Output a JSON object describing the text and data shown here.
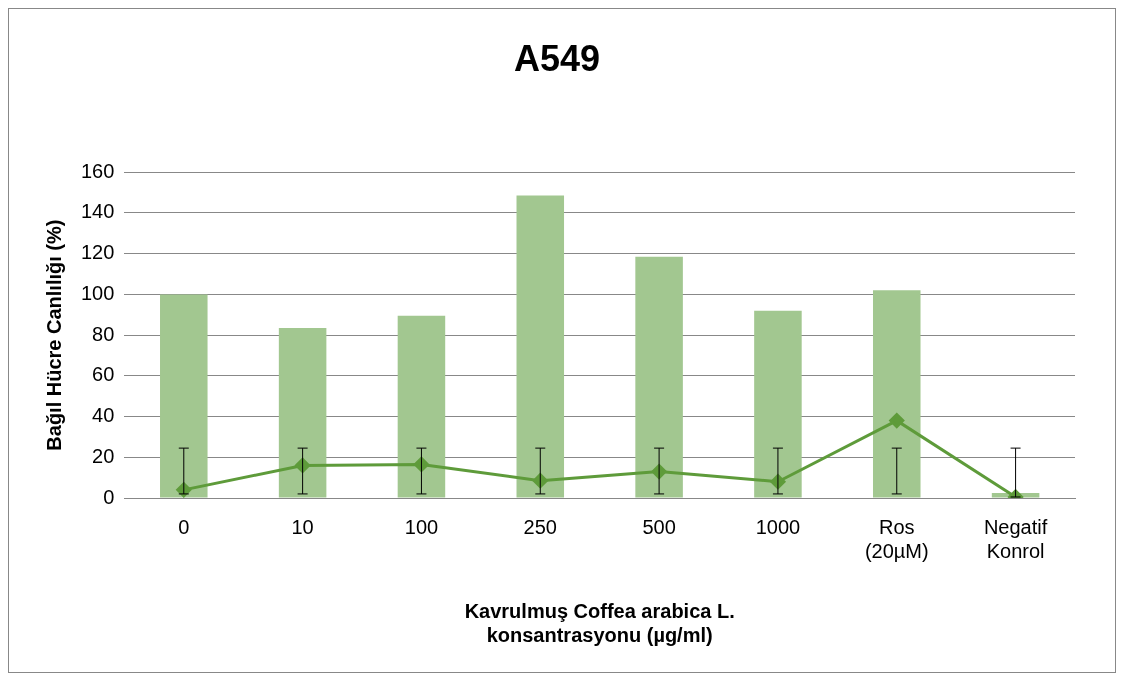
{
  "chart_data": {
    "type": "bar",
    "title": "A549",
    "xlabel": "Kavrulmuş Coffea arabica L.\nkonsantrasyonu (µg/ml)",
    "ylabel": "Bağıl Hücre Canlılığı (%)",
    "categories": [
      "0",
      "10",
      "100",
      "250",
      "500",
      "1000",
      "Ros (20µM)",
      "Negatif Konrol"
    ],
    "series": [
      {
        "color": "#a2c790",
        "values": [
          100,
          83.5,
          89.5,
          148.5,
          118.5,
          92,
          102,
          2.5
        ]
      },
      {
        "type": "line",
        "color": "#5e9b3a",
        "marker": "diamond",
        "values": [
          4,
          16,
          16.5,
          8.5,
          13,
          8,
          38,
          0.5
        ],
        "errors": [
          [
            2,
            24.5
          ],
          [
            2,
            24.5
          ],
          [
            2,
            24.5
          ],
          [
            2,
            24.5
          ],
          [
            2,
            24.5
          ],
          [
            2,
            24.5
          ],
          [
            2,
            24.5
          ],
          [
            0.5,
            24.5
          ]
        ]
      }
    ],
    "ylim": [
      0,
      160
    ],
    "yticks": [
      0,
      20,
      40,
      60,
      80,
      100,
      120,
      140,
      160
    ],
    "grid": "y",
    "legend": false
  }
}
